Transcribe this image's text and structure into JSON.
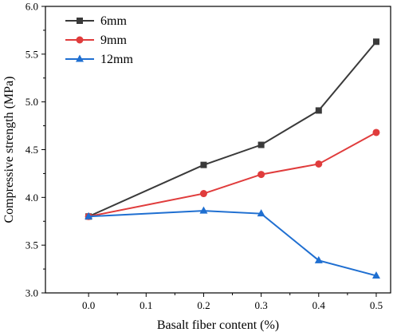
{
  "chart_data": {
    "type": "line",
    "title": "",
    "xlabel": "Basalt fiber content (%)",
    "ylabel": "Compressive strength (MPa)",
    "xlim": [
      -0.075,
      0.525
    ],
    "ylim": [
      3.0,
      6.0
    ],
    "xticks": [
      0.0,
      0.1,
      0.2,
      0.3,
      0.4,
      0.5
    ],
    "xtick_labels": [
      "0.0",
      "0.1",
      "0.2",
      "0.3",
      "0.4",
      "0.5"
    ],
    "yticks": [
      3.0,
      3.5,
      4.0,
      4.5,
      5.0,
      5.5,
      6.0
    ],
    "ytick_labels": [
      "3.0",
      "3.5",
      "4.0",
      "4.5",
      "5.0",
      "5.5",
      "6.0"
    ],
    "grid": false,
    "legend_position": "top-left",
    "x": [
      0.0,
      0.2,
      0.3,
      0.4,
      0.5
    ],
    "series": [
      {
        "name": "6mm",
        "color": "#3a3a3a",
        "marker": "square",
        "values": [
          3.8,
          4.34,
          4.55,
          4.91,
          5.63
        ]
      },
      {
        "name": "9mm",
        "color": "#e03c3c",
        "marker": "circle",
        "values": [
          3.8,
          4.04,
          4.24,
          4.35,
          4.68
        ]
      },
      {
        "name": "12mm",
        "color": "#1f6fd1",
        "marker": "triangle",
        "values": [
          3.8,
          3.86,
          3.83,
          3.34,
          3.18
        ]
      }
    ]
  }
}
